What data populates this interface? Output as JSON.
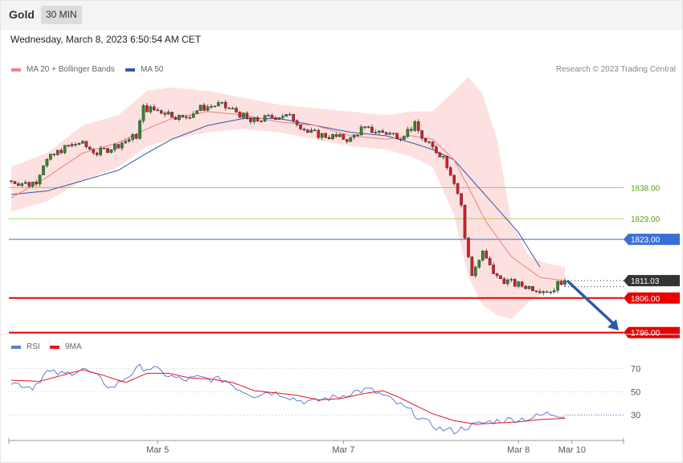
{
  "header": {
    "asset": "Gold",
    "timeframe": "30 MIN"
  },
  "datetime": "Wednesday, March 8, 2023 6:50:54 AM CET",
  "copyright": "Research © 2023 Trading Central",
  "legend": [
    {
      "label": "MA 20 + Bollinger Bands",
      "color": "#f08080"
    },
    {
      "label": "MA 50",
      "color": "#2e5aa7"
    }
  ],
  "rsi_legend": [
    {
      "label": "RSI",
      "color": "#5b7fd6"
    },
    {
      "label": "9MA",
      "color": "#e8141b"
    }
  ],
  "colors": {
    "up": "#2e8b2e",
    "down": "#d61f26",
    "ma20": "#f08080",
    "ma50": "#2e5aa7",
    "band": "#fde0e0",
    "green_level": "#8cc63f",
    "blue_level": "#3a6fd8",
    "red_level": "#e80000",
    "current": "#333333",
    "arrow": "#2e5aa7"
  },
  "chart_data": [
    {
      "type": "candlestick",
      "series_names": [
        "MA 20 + Bollinger Bands",
        "MA 50"
      ],
      "ylim": [
        1795,
        1873
      ],
      "x_tick_labels": [
        {
          "label": "Mar 5",
          "bar": 41
        },
        {
          "label": "Mar 7",
          "bar": 93
        },
        {
          "label": "Mar 8",
          "bar": 142
        },
        {
          "label": "Mar 10",
          "bar": 157
        }
      ],
      "levels": [
        {
          "value": 1838.0,
          "label": "1838.00",
          "kind": "resistance"
        },
        {
          "value": 1829.0,
          "label": "1829.00",
          "kind": "resistance"
        },
        {
          "value": 1823.0,
          "label": "1823.00",
          "kind": "pivot"
        },
        {
          "value": 1811.03,
          "label": "1811.03",
          "kind": "last"
        },
        {
          "value": 1806.0,
          "label": "1806.00",
          "kind": "target"
        },
        {
          "value": 1796.0,
          "label": "1796.00",
          "kind": "target"
        }
      ],
      "anchors": [
        [
          0,
          1840
        ],
        [
          6,
          1839
        ],
        [
          8,
          1840
        ],
        [
          10,
          1845
        ],
        [
          15,
          1849
        ],
        [
          20,
          1851
        ],
        [
          25,
          1848
        ],
        [
          30,
          1850
        ],
        [
          36,
          1853
        ],
        [
          38,
          1861
        ],
        [
          44,
          1860
        ],
        [
          49,
          1858
        ],
        [
          54,
          1861
        ],
        [
          59,
          1862
        ],
        [
          64,
          1860
        ],
        [
          68,
          1857
        ],
        [
          72,
          1858
        ],
        [
          77,
          1859
        ],
        [
          80,
          1858
        ],
        [
          84,
          1854
        ],
        [
          89,
          1853
        ],
        [
          96,
          1852
        ],
        [
          99,
          1855
        ],
        [
          105,
          1854
        ],
        [
          110,
          1853
        ],
        [
          114,
          1856
        ],
        [
          117,
          1851
        ],
        [
          122,
          1847
        ],
        [
          125,
          1840
        ],
        [
          127,
          1833
        ],
        [
          128,
          1823
        ],
        [
          130,
          1813
        ],
        [
          133,
          1819
        ],
        [
          135,
          1815
        ],
        [
          137,
          1812
        ],
        [
          142,
          1810
        ],
        [
          147,
          1809
        ],
        [
          152,
          1808
        ],
        [
          155,
          1811
        ]
      ],
      "ma20_anchors": [
        [
          0,
          1835
        ],
        [
          10,
          1841
        ],
        [
          20,
          1848
        ],
        [
          30,
          1851
        ],
        [
          38,
          1855
        ],
        [
          45,
          1858
        ],
        [
          55,
          1860
        ],
        [
          65,
          1859
        ],
        [
          75,
          1857
        ],
        [
          85,
          1856
        ],
        [
          95,
          1853
        ],
        [
          105,
          1852
        ],
        [
          112,
          1853
        ],
        [
          118,
          1852
        ],
        [
          124,
          1846
        ],
        [
          128,
          1838
        ],
        [
          133,
          1828
        ],
        [
          140,
          1818
        ],
        [
          148,
          1812
        ],
        [
          155,
          1811
        ]
      ],
      "upper_band_anchors": [
        [
          0,
          1844
        ],
        [
          10,
          1848
        ],
        [
          20,
          1856
        ],
        [
          30,
          1859
        ],
        [
          38,
          1866
        ],
        [
          45,
          1867
        ],
        [
          55,
          1866
        ],
        [
          65,
          1864
        ],
        [
          75,
          1862
        ],
        [
          85,
          1861
        ],
        [
          95,
          1860
        ],
        [
          105,
          1859
        ],
        [
          112,
          1860
        ],
        [
          118,
          1860
        ],
        [
          124,
          1866
        ],
        [
          128,
          1870
        ],
        [
          132,
          1865
        ],
        [
          136,
          1852
        ],
        [
          140,
          1828
        ],
        [
          145,
          1818
        ],
        [
          150,
          1816
        ],
        [
          155,
          1815
        ]
      ],
      "lower_band_anchors": [
        [
          0,
          1831
        ],
        [
          10,
          1834
        ],
        [
          20,
          1840
        ],
        [
          30,
          1844
        ],
        [
          38,
          1850
        ],
        [
          45,
          1852
        ],
        [
          55,
          1854
        ],
        [
          65,
          1855
        ],
        [
          75,
          1854
        ],
        [
          85,
          1852
        ],
        [
          95,
          1850
        ],
        [
          105,
          1849
        ],
        [
          112,
          1847
        ],
        [
          118,
          1844
        ],
        [
          124,
          1830
        ],
        [
          128,
          1812
        ],
        [
          132,
          1804
        ],
        [
          136,
          1801
        ],
        [
          140,
          1800
        ],
        [
          145,
          1805
        ],
        [
          150,
          1808
        ],
        [
          155,
          1810
        ]
      ],
      "ma50_anchors": [
        [
          0,
          1836
        ],
        [
          10,
          1837
        ],
        [
          20,
          1840
        ],
        [
          30,
          1843
        ],
        [
          38,
          1848
        ],
        [
          45,
          1852
        ],
        [
          55,
          1856
        ],
        [
          65,
          1858
        ],
        [
          75,
          1858
        ],
        [
          85,
          1856
        ],
        [
          95,
          1854
        ],
        [
          105,
          1853
        ],
        [
          112,
          1851
        ],
        [
          118,
          1849
        ],
        [
          124,
          1846
        ],
        [
          130,
          1839
        ],
        [
          136,
          1832
        ],
        [
          142,
          1825
        ],
        [
          148,
          1815
        ]
      ]
    },
    {
      "type": "line",
      "series_names": [
        "RSI",
        "9MA"
      ],
      "ylim": [
        10,
        85
      ],
      "levels": [
        70,
        50,
        30
      ],
      "rsi_anchors": [
        [
          0,
          58
        ],
        [
          6,
          54
        ],
        [
          10,
          67
        ],
        [
          15,
          65
        ],
        [
          20,
          70
        ],
        [
          24,
          63
        ],
        [
          28,
          53
        ],
        [
          32,
          62
        ],
        [
          36,
          71
        ],
        [
          40,
          70
        ],
        [
          44,
          64
        ],
        [
          48,
          60
        ],
        [
          52,
          62
        ],
        [
          56,
          61
        ],
        [
          60,
          60
        ],
        [
          64,
          52
        ],
        [
          68,
          47
        ],
        [
          72,
          50
        ],
        [
          76,
          48
        ],
        [
          80,
          43
        ],
        [
          84,
          41
        ],
        [
          88,
          44
        ],
        [
          92,
          46
        ],
        [
          96,
          50
        ],
        [
          100,
          52
        ],
        [
          104,
          47
        ],
        [
          108,
          40
        ],
        [
          112,
          33
        ],
        [
          116,
          24
        ],
        [
          120,
          18
        ],
        [
          124,
          16
        ],
        [
          128,
          20
        ],
        [
          132,
          23
        ],
        [
          136,
          25
        ],
        [
          140,
          26
        ],
        [
          145,
          27
        ],
        [
          150,
          31
        ],
        [
          155,
          30
        ]
      ],
      "rsi_ma_anchors": [
        [
          0,
          60
        ],
        [
          8,
          59
        ],
        [
          14,
          64
        ],
        [
          20,
          69
        ],
        [
          26,
          64
        ],
        [
          32,
          58
        ],
        [
          38,
          66
        ],
        [
          44,
          66
        ],
        [
          50,
          62
        ],
        [
          56,
          61
        ],
        [
          62,
          58
        ],
        [
          68,
          51
        ],
        [
          74,
          49
        ],
        [
          80,
          47
        ],
        [
          86,
          43
        ],
        [
          92,
          44
        ],
        [
          98,
          48
        ],
        [
          104,
          51
        ],
        [
          108,
          46
        ],
        [
          112,
          40
        ],
        [
          118,
          31
        ],
        [
          124,
          25
        ],
        [
          130,
          22
        ],
        [
          136,
          23
        ],
        [
          142,
          24
        ],
        [
          148,
          26
        ],
        [
          155,
          27
        ]
      ]
    }
  ]
}
